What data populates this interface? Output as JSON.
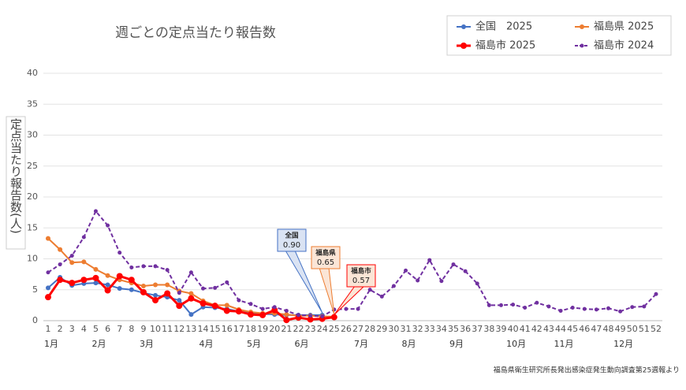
{
  "chart_data": {
    "type": "line",
    "title": "週ごとの定点当たり報告数",
    "y_label": "定点当たり報告数(人)",
    "source": "福島県衛生研究所長発出感染症発生動向調査第25週報より",
    "categories": [
      1,
      2,
      3,
      4,
      5,
      6,
      7,
      8,
      9,
      10,
      11,
      12,
      13,
      14,
      15,
      16,
      17,
      18,
      19,
      20,
      21,
      22,
      23,
      24,
      25,
      26,
      27,
      28,
      29,
      30,
      31,
      32,
      33,
      34,
      35,
      36,
      37,
      38,
      39,
      40,
      41,
      42,
      43,
      44,
      45,
      46,
      47,
      48,
      49,
      50,
      51,
      52
    ],
    "months": [
      {
        "week": 1,
        "label": "1月"
      },
      {
        "week": 5,
        "label": "2月"
      },
      {
        "week": 9,
        "label": "3月"
      },
      {
        "week": 14,
        "label": "4月"
      },
      {
        "week": 18,
        "label": "5月"
      },
      {
        "week": 22,
        "label": "6月"
      },
      {
        "week": 27,
        "label": "7月"
      },
      {
        "week": 31,
        "label": "8月"
      },
      {
        "week": 35,
        "label": "9月"
      },
      {
        "week": 40,
        "label": "10月"
      },
      {
        "week": 44,
        "label": "11月"
      },
      {
        "week": 49,
        "label": "12月"
      }
    ],
    "ylim": [
      0,
      40
    ],
    "yticks": [
      0,
      5,
      10,
      15,
      20,
      25,
      30,
      35,
      40
    ],
    "grid": true,
    "series": [
      {
        "name": "全国　2025",
        "color": "#4472c4",
        "width": 2,
        "dash": false,
        "marker": 3,
        "values": [
          5.3,
          7.0,
          5.7,
          6.0,
          6.1,
          5.8,
          5.2,
          5.0,
          4.5,
          4.1,
          3.8,
          3.3,
          1.0,
          2.2,
          2.1,
          1.9,
          1.5,
          1.2,
          1.1,
          1.0,
          0.9,
          0.9,
          0.9,
          0.9,
          null,
          null,
          null,
          null,
          null,
          null,
          null,
          null,
          null,
          null,
          null,
          null,
          null,
          null,
          null,
          null,
          null,
          null,
          null,
          null,
          null,
          null,
          null,
          null,
          null,
          null,
          null,
          null
        ]
      },
      {
        "name": "福島県 2025",
        "color": "#ed7d31",
        "width": 2,
        "dash": false,
        "marker": 3,
        "values": [
          13.3,
          11.5,
          9.4,
          9.5,
          8.3,
          7.3,
          6.6,
          6.1,
          5.6,
          5.8,
          5.8,
          4.8,
          4.4,
          3.2,
          2.5,
          2.5,
          1.8,
          1.4,
          1.2,
          1.2,
          1.0,
          0.8,
          0.8,
          0.7,
          0.65,
          null,
          null,
          null,
          null,
          null,
          null,
          null,
          null,
          null,
          null,
          null,
          null,
          null,
          null,
          null,
          null,
          null,
          null,
          null,
          null,
          null,
          null,
          null,
          null,
          null,
          null,
          null
        ]
      },
      {
        "name": "福島市 2025",
        "color": "#ff0000",
        "width": 3,
        "dash": false,
        "marker": 4,
        "values": [
          3.8,
          6.6,
          6.1,
          6.6,
          6.9,
          4.9,
          7.2,
          6.6,
          4.6,
          3.3,
          4.4,
          2.4,
          3.6,
          2.8,
          2.4,
          1.6,
          1.5,
          1.0,
          0.9,
          1.7,
          0.1,
          0.5,
          0.2,
          0.3,
          0.57,
          null,
          null,
          null,
          null,
          null,
          null,
          null,
          null,
          null,
          null,
          null,
          null,
          null,
          null,
          null,
          null,
          null,
          null,
          null,
          null,
          null,
          null,
          null,
          null,
          null,
          null,
          null
        ]
      },
      {
        "name": "福島市 2024",
        "color": "#7030a0",
        "width": 2,
        "dash": true,
        "marker": 2.5,
        "values": [
          7.8,
          9.1,
          10.5,
          13.5,
          17.7,
          15.4,
          11.0,
          8.6,
          8.8,
          8.8,
          8.2,
          4.5,
          7.8,
          5.2,
          5.3,
          6.2,
          3.3,
          2.7,
          1.9,
          2.2,
          1.6,
          0.9,
          0.8,
          0.7,
          1.8,
          1.9,
          1.9,
          5.0,
          3.9,
          5.6,
          8.1,
          6.5,
          9.8,
          6.4,
          9.1,
          8.0,
          6.0,
          2.5,
          2.5,
          2.6,
          2.1,
          2.9,
          2.3,
          1.6,
          2.1,
          1.9,
          1.8,
          2.0,
          1.5,
          2.2,
          2.3,
          4.3
        ]
      }
    ],
    "annotations": [
      {
        "series": 0,
        "week": 24,
        "text": "全国",
        "value": 0.9,
        "value_label": "0.90"
      },
      {
        "series": 1,
        "week": 25,
        "text": "福島県",
        "value": 0.65,
        "value_label": "0.65"
      },
      {
        "series": 2,
        "week": 25,
        "text": "福島市",
        "value": 0.57,
        "value_label": "0.57"
      }
    ]
  }
}
